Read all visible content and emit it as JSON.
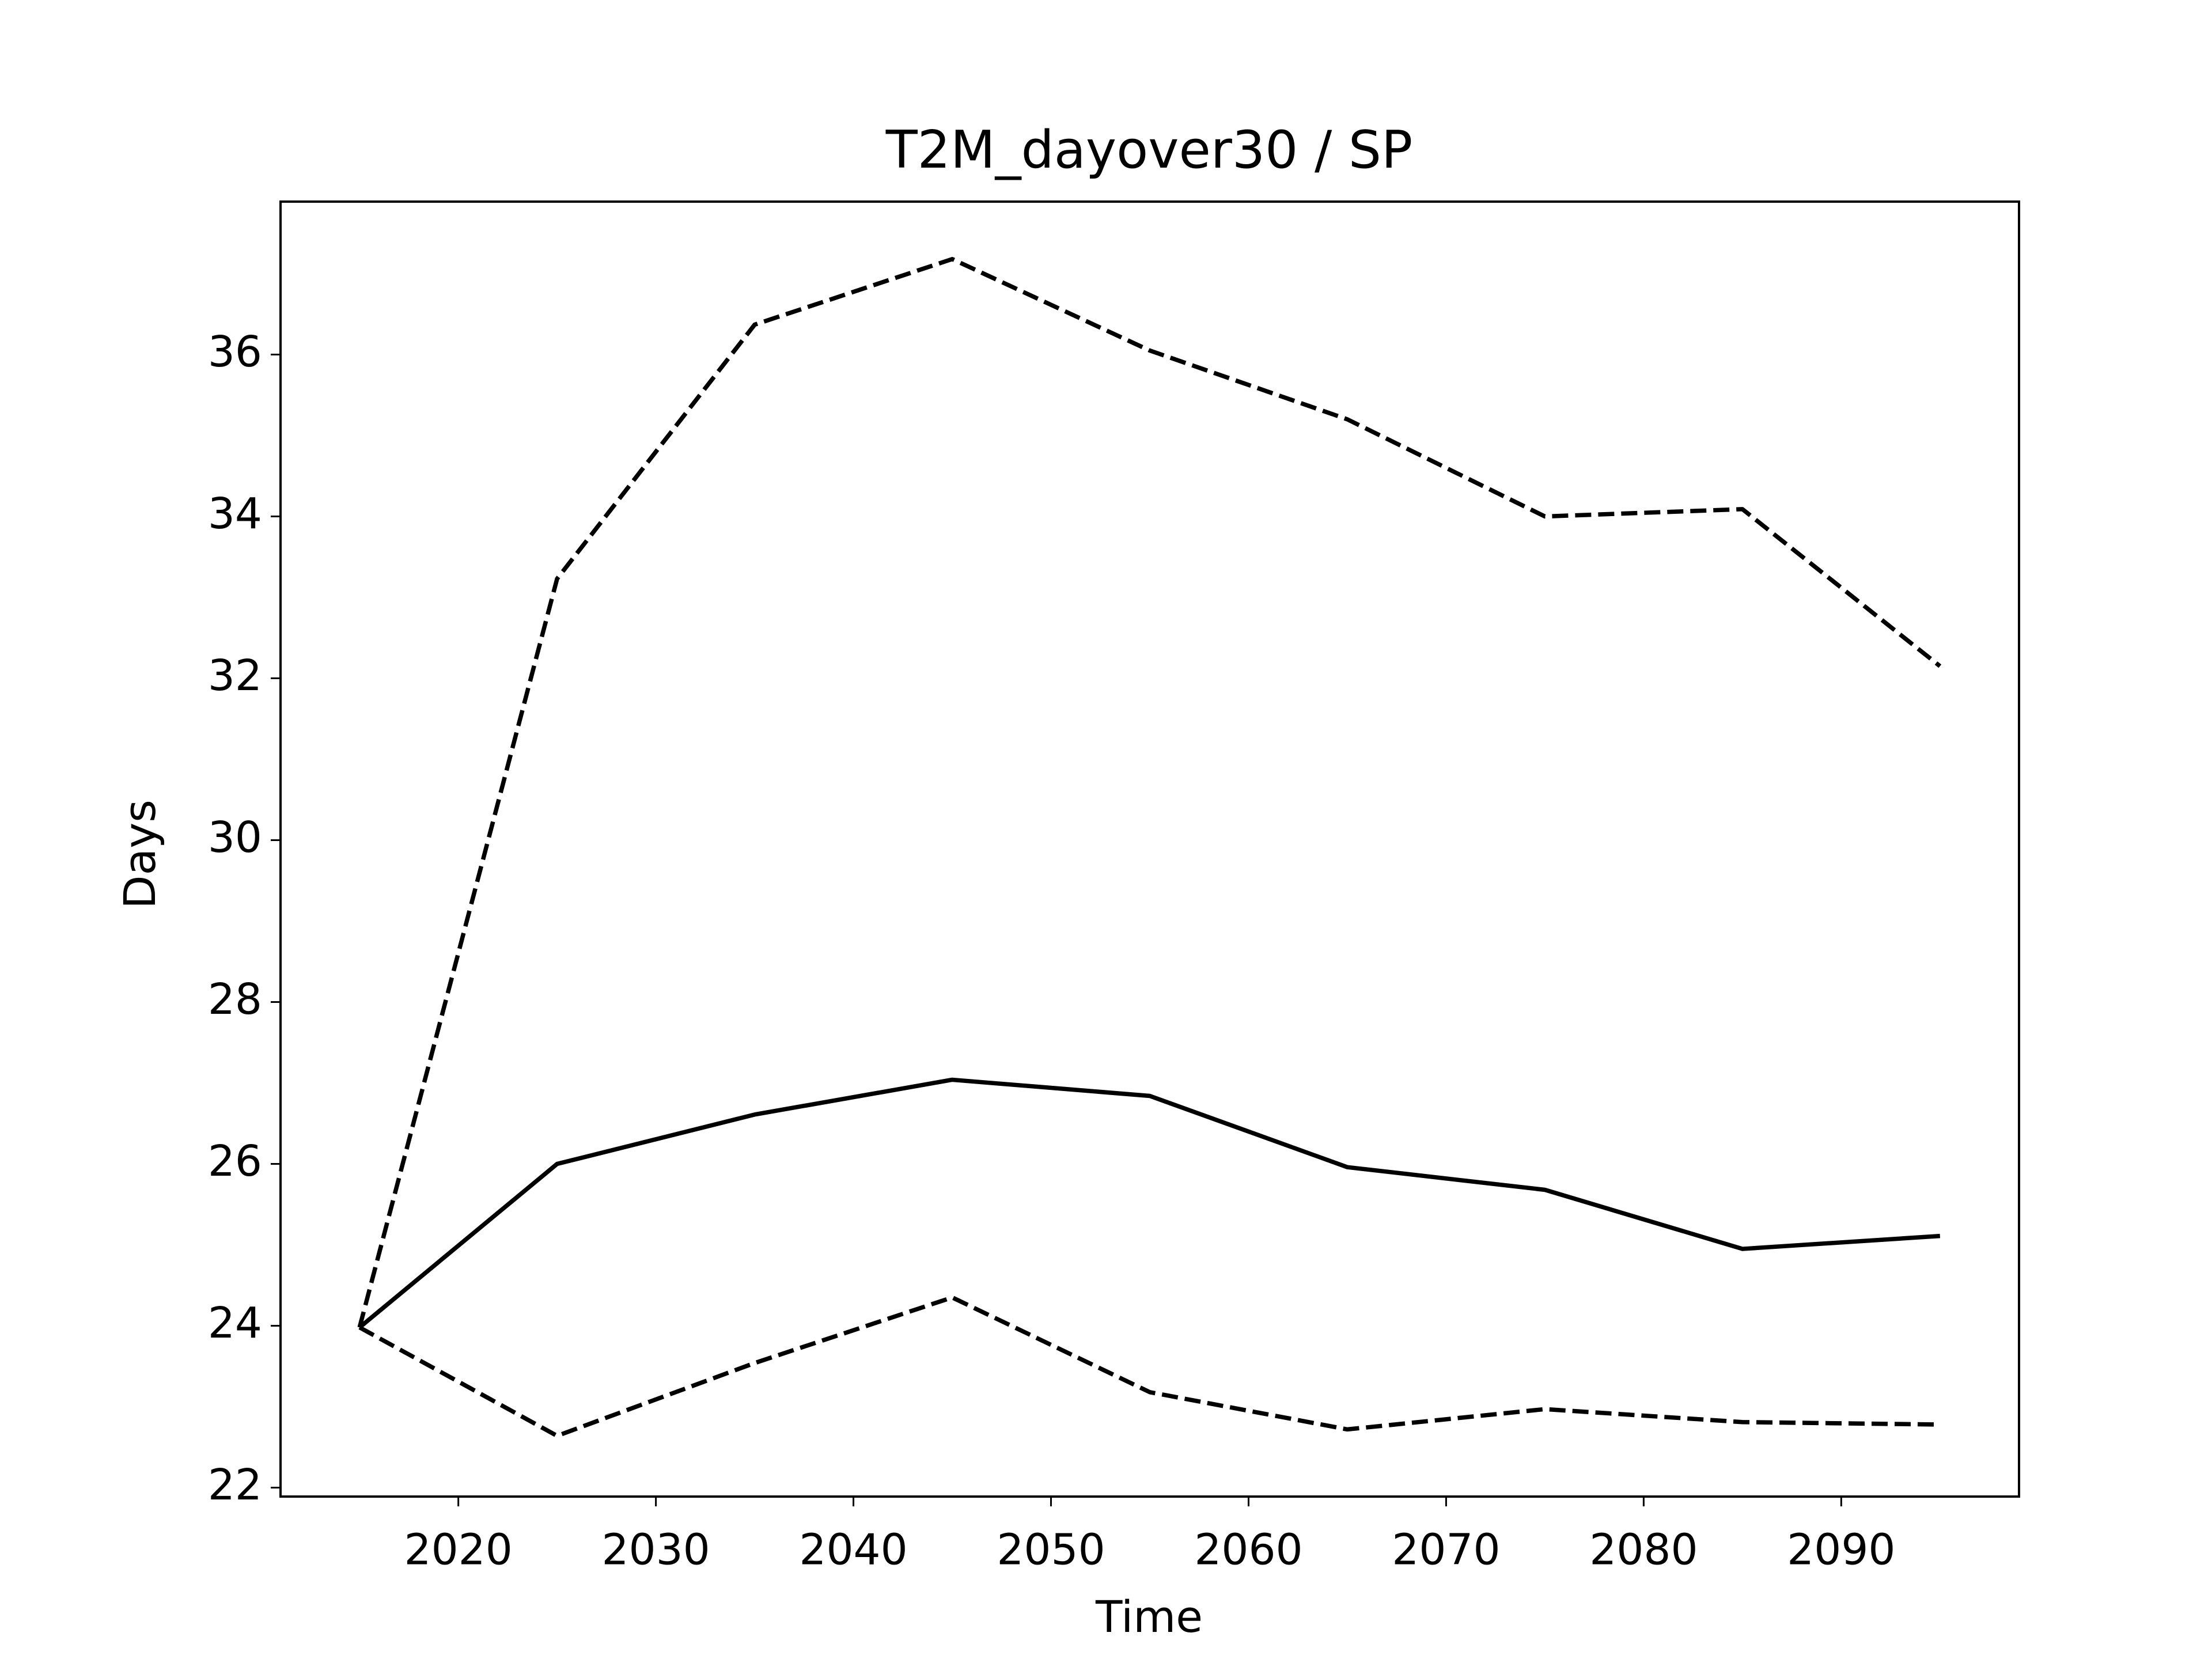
{
  "chart_data": {
    "type": "line",
    "title": "T2M_dayover30 / SP",
    "x_label": "Time",
    "y_label": "Days",
    "x": [
      2015,
      2025,
      2035,
      2045,
      2055,
      2065,
      2075,
      2085,
      2095
    ],
    "series": [
      {
        "color": "#000000",
        "dash": "solid",
        "values": [
          23.98,
          26.0,
          26.61,
          27.04,
          26.84,
          25.96,
          25.68,
          24.95,
          25.11
        ]
      },
      {
        "color": "#000000",
        "dash": "dashed",
        "values": [
          23.98,
          33.23,
          36.37,
          37.18,
          36.05,
          35.2,
          34.0,
          34.09,
          32.15
        ]
      },
      {
        "color": "#000000",
        "dash": "dashed",
        "values": [
          23.98,
          22.64,
          23.54,
          24.35,
          23.18,
          22.72,
          22.97,
          22.81,
          22.78
        ]
      }
    ],
    "xlim": [
      2011,
      2099
    ],
    "xticks": [
      2020,
      2030,
      2040,
      2050,
      2060,
      2070,
      2080,
      2090
    ],
    "ylim": [
      21.89,
      37.89
    ],
    "yticks": [
      22,
      24,
      26,
      28,
      30,
      32,
      34,
      36
    ],
    "grid": false
  }
}
